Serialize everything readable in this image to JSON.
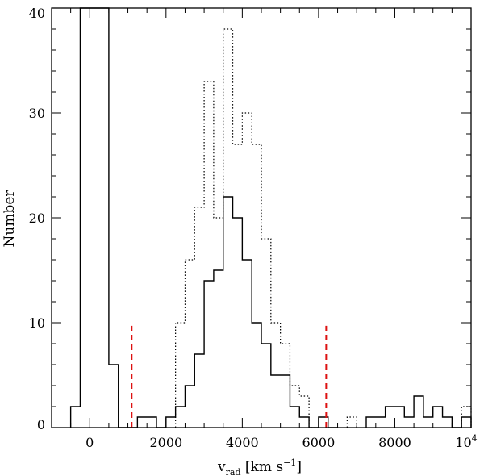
{
  "chart_data": {
    "type": "histogram",
    "xlabel": {
      "main": "v",
      "sub": "rad",
      "rest": " [km s",
      "sup": "−1",
      "close": "]"
    },
    "ylabel": "Number",
    "xlim": [
      -1000,
      10000
    ],
    "ylim": [
      0,
      40
    ],
    "xticks": [
      {
        "value": 0,
        "label": "0"
      },
      {
        "value": 2000,
        "label": "2000"
      },
      {
        "value": 4000,
        "label": "4000"
      },
      {
        "value": 6000,
        "label": "6000"
      },
      {
        "value": 8000,
        "label": "8000"
      }
    ],
    "xtick_last": {
      "value": 10000,
      "base": "10",
      "exp": "4"
    },
    "yticks": [
      0,
      10,
      20,
      30,
      40
    ],
    "bin_width": 250,
    "series": [
      {
        "style": "solid",
        "bins": [
          {
            "x": -500,
            "y": 2
          },
          {
            "x": -250,
            "y": 41
          },
          {
            "x": 0,
            "y": 41
          },
          {
            "x": 250,
            "y": 41
          },
          {
            "x": 500,
            "y": 6
          },
          {
            "x": 750,
            "y": 0
          },
          {
            "x": 1000,
            "y": 0
          },
          {
            "x": 1250,
            "y": 1
          },
          {
            "x": 1500,
            "y": 1
          },
          {
            "x": 1750,
            "y": 0
          },
          {
            "x": 2000,
            "y": 1
          },
          {
            "x": 2250,
            "y": 2
          },
          {
            "x": 2500,
            "y": 4
          },
          {
            "x": 2750,
            "y": 7
          },
          {
            "x": 3000,
            "y": 14
          },
          {
            "x": 3250,
            "y": 15
          },
          {
            "x": 3500,
            "y": 22
          },
          {
            "x": 3750,
            "y": 20
          },
          {
            "x": 4000,
            "y": 16
          },
          {
            "x": 4250,
            "y": 10
          },
          {
            "x": 4500,
            "y": 8
          },
          {
            "x": 4750,
            "y": 5
          },
          {
            "x": 5000,
            "y": 5
          },
          {
            "x": 5250,
            "y": 2
          },
          {
            "x": 5500,
            "y": 1
          },
          {
            "x": 5750,
            "y": 0
          },
          {
            "x": 6000,
            "y": 1
          },
          {
            "x": 6250,
            "y": 0
          },
          {
            "x": 7250,
            "y": 1
          },
          {
            "x": 7500,
            "y": 1
          },
          {
            "x": 7750,
            "y": 2
          },
          {
            "x": 8000,
            "y": 2
          },
          {
            "x": 8250,
            "y": 1
          },
          {
            "x": 8500,
            "y": 3
          },
          {
            "x": 8750,
            "y": 1
          },
          {
            "x": 9000,
            "y": 2
          },
          {
            "x": 9250,
            "y": 1
          },
          {
            "x": 9500,
            "y": 0
          },
          {
            "x": 9750,
            "y": 1
          }
        ]
      },
      {
        "style": "dotted",
        "bins": [
          {
            "x": 2250,
            "y": 10
          },
          {
            "x": 2500,
            "y": 16
          },
          {
            "x": 2750,
            "y": 21
          },
          {
            "x": 3000,
            "y": 33
          },
          {
            "x": 3250,
            "y": 20
          },
          {
            "x": 3500,
            "y": 38
          },
          {
            "x": 3750,
            "y": 27
          },
          {
            "x": 4000,
            "y": 30
          },
          {
            "x": 4250,
            "y": 27
          },
          {
            "x": 4500,
            "y": 18
          },
          {
            "x": 4750,
            "y": 10
          },
          {
            "x": 5000,
            "y": 8
          },
          {
            "x": 5250,
            "y": 4
          },
          {
            "x": 5500,
            "y": 3
          },
          {
            "x": 5750,
            "y": 0
          },
          {
            "x": 6750,
            "y": 1
          },
          {
            "x": 9750,
            "y": 2
          }
        ]
      }
    ],
    "vlines": [
      {
        "x": 1100,
        "y_top": 9.7,
        "color": "#dd1111"
      },
      {
        "x": 6200,
        "y_top": 9.7,
        "color": "#dd1111"
      }
    ]
  }
}
